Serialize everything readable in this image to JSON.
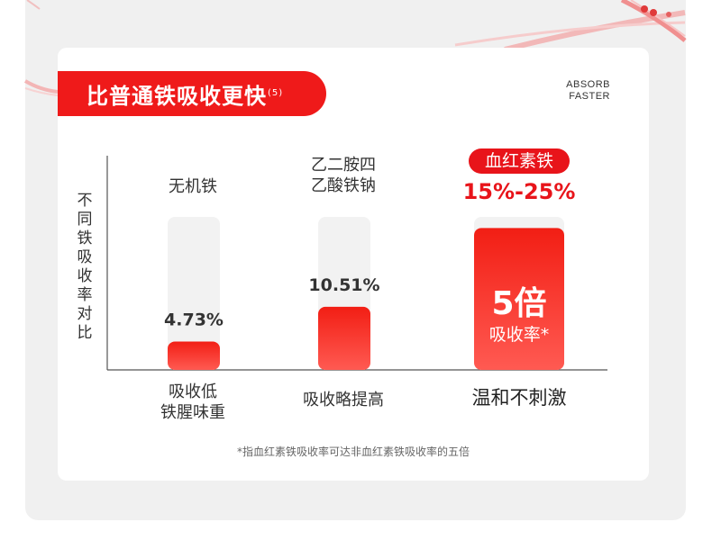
{
  "title": "比普通铁吸收更快",
  "title_note": "(5)",
  "tag_lines": [
    "ABSORB",
    "FASTER"
  ],
  "y_axis_label": "不同铁吸收率对比",
  "highlight_badge": "血红素铁",
  "highlight_range": "15%-25%",
  "footnote": "*指血红素铁吸收率可达非血红素铁吸收率的五倍",
  "colors": {
    "accent": "#ef1a1a",
    "bar_bg": "#f2f2f2",
    "text": "#333333"
  },
  "chart_data": {
    "type": "bar",
    "categories": [
      "无机铁",
      "乙二胺四\n乙酸铁钠",
      "血红素铁"
    ],
    "values": [
      4.73,
      10.51,
      23.65
    ],
    "value_labels": [
      "4.73%",
      "10.51%",
      ""
    ],
    "highlight_labels": [
      "5倍",
      "吸收率*"
    ],
    "bottom_labels": [
      "吸收低\n铁腥味重",
      "吸收略提高",
      "温和不刺激"
    ],
    "top_labels": [
      "无机铁",
      "乙二胺四\n乙酸铁钠",
      ""
    ],
    "ylabel": "不同铁吸收率对比",
    "ylim": [
      0,
      25.5
    ]
  }
}
